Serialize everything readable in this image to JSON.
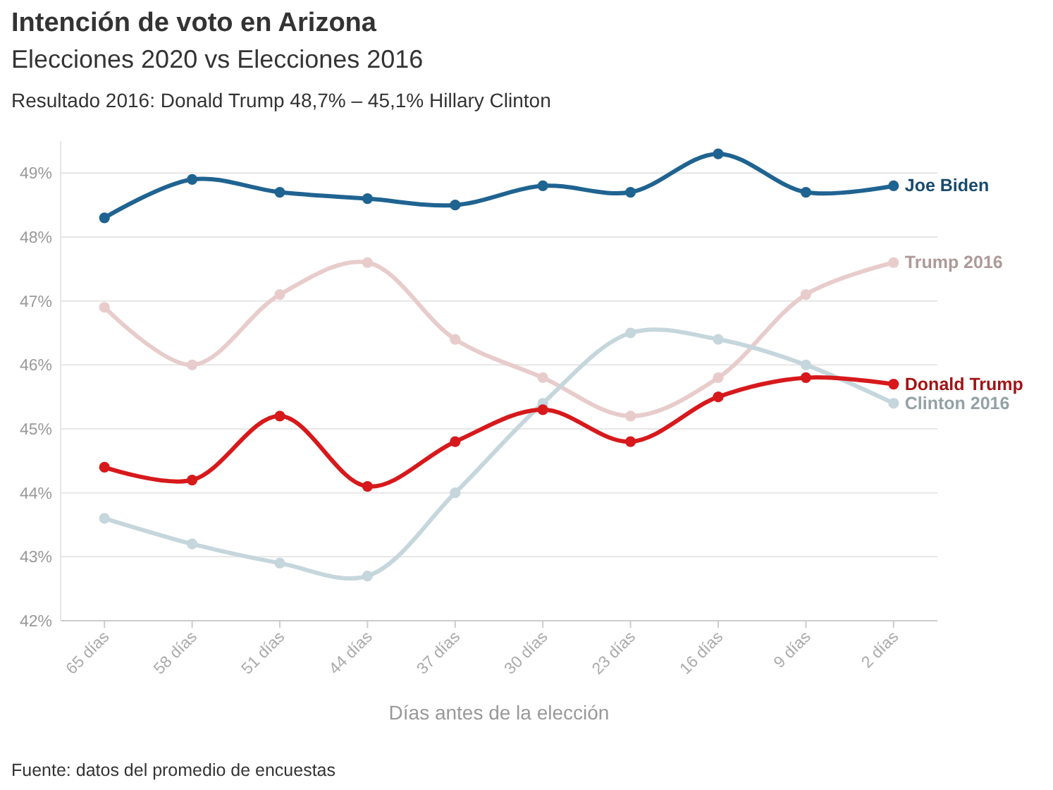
{
  "chart_data": {
    "type": "line",
    "title": "Intención de voto en Arizona",
    "subtitle": "Elecciones 2020 vs Elecciones 2016",
    "xlabel": "Días antes de la elección",
    "annotations": [
      "Resultado 2016: Donald Trump 48,7% – 45,1% Hillary Clinton",
      "Fuente: datos del promedio de encuestas"
    ],
    "categories": [
      "65 días",
      "58 días",
      "51 días",
      "44 días",
      "37 días",
      "30 días",
      "23 días",
      "16 días",
      "9 días",
      "2 días"
    ],
    "series": [
      {
        "name": "Trump 2016",
        "color": "#e8cccc",
        "values": [
          46.9,
          46.0,
          47.1,
          47.6,
          46.4,
          45.8,
          45.2,
          45.8,
          47.1,
          47.6
        ]
      },
      {
        "name": "Clinton 2016",
        "color": "#c5d6dc",
        "values": [
          43.6,
          43.2,
          42.9,
          42.7,
          44.0,
          45.4,
          46.5,
          46.4,
          46.0,
          45.4
        ]
      },
      {
        "name": "Joe Biden",
        "color": "#1f6391",
        "values": [
          48.3,
          48.9,
          48.7,
          48.6,
          48.5,
          48.8,
          48.7,
          49.3,
          48.7,
          48.8
        ]
      },
      {
        "name": "Donald Trump",
        "color": "#d7191c",
        "values": [
          44.4,
          44.2,
          45.2,
          44.1,
          44.8,
          45.3,
          44.8,
          45.5,
          45.8,
          45.7
        ]
      }
    ],
    "ylim": [
      42,
      49.5
    ],
    "yticks": [
      {
        "value": 42,
        "label": "42%"
      },
      {
        "value": 43,
        "label": "43%"
      },
      {
        "value": 44,
        "label": "44%"
      },
      {
        "value": 45,
        "label": "45%"
      },
      {
        "value": 46,
        "label": "46%"
      },
      {
        "value": 47,
        "label": "47%"
      },
      {
        "value": 48,
        "label": "48%"
      },
      {
        "value": 49,
        "label": "49%"
      }
    ],
    "grid": "y",
    "marker": "circle",
    "line_style": "solid"
  }
}
